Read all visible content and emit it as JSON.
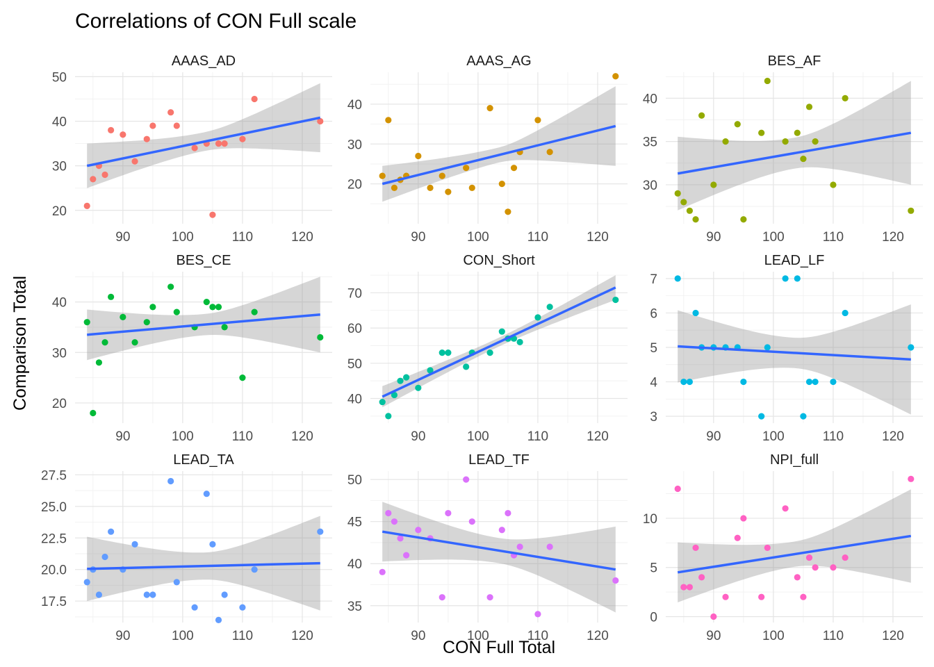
{
  "chart_data": {
    "type": "scatter",
    "title": "Correlations of CON Full scale",
    "xlabel": "CON Full Total",
    "ylabel": "Comparison Total",
    "xlim": [
      82,
      125
    ],
    "xticks": [
      90,
      100,
      110,
      120
    ],
    "grid": true,
    "legend": "none",
    "fit": "linear regression line with shaded confidence band",
    "x": [
      84,
      85,
      86,
      87,
      88,
      90,
      92,
      94,
      95,
      98,
      99,
      102,
      104,
      105,
      106,
      107,
      110,
      112,
      123
    ],
    "panels": [
      {
        "name": "AAAS_AD",
        "color": "#F8766D",
        "ylim": [
          17,
          51
        ],
        "yticks": [
          20,
          30,
          40,
          50
        ],
        "y": [
          21,
          27,
          30,
          28,
          38,
          37,
          31,
          36,
          39,
          42,
          39,
          34,
          35,
          19,
          35,
          35,
          36,
          45,
          40
        ],
        "fit_line": [
          30,
          40.8
        ],
        "band_low": [
          25,
          33
        ],
        "band_high": [
          35,
          48.5
        ]
      },
      {
        "name": "AAAS_AG",
        "color": "#D39200",
        "ylim": [
          10,
          48
        ],
        "yticks": [
          20,
          30,
          40
        ],
        "y": [
          22,
          36,
          19,
          21,
          22,
          27,
          19,
          22,
          18,
          24,
          19,
          39,
          20,
          13,
          24,
          28,
          36,
          28,
          47
        ],
        "fit_line": [
          20,
          34.5
        ],
        "band_low": [
          15.5,
          24.5
        ],
        "band_high": [
          24.5,
          44.5
        ]
      },
      {
        "name": "BES_AF",
        "color": "#93AA00",
        "ylim": [
          25.5,
          43
        ],
        "yticks": [
          30,
          35,
          40
        ],
        "y": [
          29,
          28,
          27,
          26,
          38,
          30,
          35,
          37,
          26,
          36,
          42,
          35,
          36,
          33,
          39,
          35,
          30,
          40,
          27
        ],
        "fit_line": [
          31.3,
          36
        ],
        "band_low": [
          27,
          30
        ],
        "band_high": [
          35.5,
          42
        ]
      },
      {
        "name": "BES_CE",
        "color": "#00BA38",
        "ylim": [
          16,
          46
        ],
        "yticks": [
          20,
          30,
          40
        ],
        "y": [
          36,
          18,
          28,
          32,
          41,
          37,
          32,
          36,
          39,
          43,
          38,
          35,
          40,
          39,
          39,
          35,
          25,
          38,
          33
        ],
        "fit_line": [
          33.5,
          37.5
        ],
        "band_low": [
          28.5,
          30
        ],
        "band_high": [
          38.5,
          45
        ]
      },
      {
        "name": "CON_Short",
        "color": "#00C19F",
        "ylim": [
          33,
          76
        ],
        "yticks": [
          40,
          50,
          60,
          70
        ],
        "y": [
          39,
          35,
          41,
          45,
          46,
          43,
          48,
          53,
          53,
          49,
          53,
          53,
          59,
          57,
          57,
          56,
          63,
          66,
          68
        ],
        "fit_line": [
          40.5,
          71.5
        ],
        "band_low": [
          37.5,
          68
        ],
        "band_high": [
          43.5,
          75
        ]
      },
      {
        "name": "LEAD_LF",
        "color": "#00B9E3",
        "ylim": [
          2.8,
          7.2
        ],
        "yticks": [
          3,
          4,
          5,
          6,
          7
        ],
        "y": [
          7,
          4,
          4,
          6,
          5,
          5,
          5,
          5,
          4,
          3,
          5,
          7,
          7,
          3,
          4,
          4,
          4,
          6,
          5
        ],
        "fit_line": [
          5.03,
          4.65
        ],
        "band_low": [
          4,
          3.1
        ],
        "band_high": [
          6.1,
          6.3
        ]
      },
      {
        "name": "LEAD_TA",
        "color": "#619CFF",
        "ylim": [
          15.8,
          27.8
        ],
        "yticks": [
          17.5,
          20,
          22.5,
          25,
          27.5
        ],
        "yticklabels": [
          "17.5",
          "20.0",
          "22.5",
          "25.0",
          "27.5"
        ],
        "y": [
          19,
          20,
          18,
          21,
          23,
          20,
          22,
          18,
          18,
          27,
          19,
          17,
          26,
          22,
          16,
          18,
          17,
          20,
          23
        ],
        "fit_line": [
          20.05,
          20.5
        ],
        "band_low": [
          17.5,
          16.8
        ],
        "band_high": [
          22.6,
          24.3
        ]
      },
      {
        "name": "LEAD_TF",
        "color": "#DB72FB",
        "ylim": [
          33,
          51
        ],
        "yticks": [
          35,
          40,
          45,
          50
        ],
        "y": [
          39,
          46,
          45,
          43,
          41,
          44,
          43,
          36,
          46,
          50,
          45,
          36,
          44,
          46,
          41,
          42,
          34,
          42,
          38
        ],
        "fit_line": [
          43.8,
          39.3
        ],
        "band_low": [
          40,
          34.2
        ],
        "band_high": [
          47.1,
          44.4
        ]
      },
      {
        "name": "NPI_full",
        "color": "#FF61C3",
        "ylim": [
          -0.6,
          14.8
        ],
        "yticks": [
          0,
          5,
          10
        ],
        "y": [
          13,
          3,
          3,
          7,
          4,
          0,
          2,
          8,
          10,
          2,
          7,
          11,
          4,
          2,
          6,
          5,
          5,
          6,
          14
        ],
        "fit_line": [
          4.5,
          8.2
        ],
        "band_low": [
          1.5,
          3.5
        ],
        "band_high": [
          7.6,
          13
        ]
      }
    ]
  }
}
